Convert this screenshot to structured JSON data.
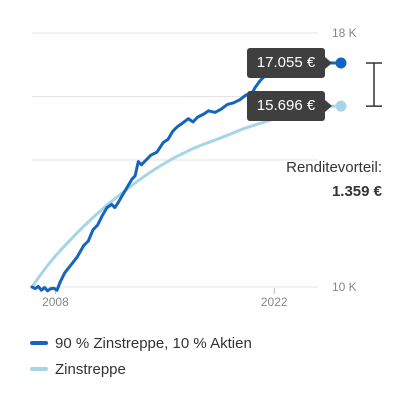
{
  "chart_data": {
    "type": "line",
    "title": "",
    "xlabel": "",
    "ylabel": "",
    "xlim": [
      2006.5,
      2024.8
    ],
    "ylim": [
      10000,
      18000
    ],
    "x_ticks": [
      2008,
      2022
    ],
    "x_tick_labels": [
      "2008",
      "2022"
    ],
    "y_ticks": [
      10000,
      18000
    ],
    "y_tick_labels": [
      "10 K",
      "18 K"
    ],
    "grid": "horizontal",
    "legend_position": "bottom",
    "series": [
      {
        "name": "90 % Zinstreppe, 10 % Aktien",
        "color": "#1565c0",
        "points": [
          [
            2006.5,
            10000
          ],
          [
            2006.7,
            9950
          ],
          [
            2006.9,
            10020
          ],
          [
            2007.1,
            9900
          ],
          [
            2007.3,
            9980
          ],
          [
            2007.5,
            9880
          ],
          [
            2007.7,
            9950
          ],
          [
            2007.9,
            9960
          ],
          [
            2008.1,
            9900
          ],
          [
            2008.3,
            10150
          ],
          [
            2008.6,
            10450
          ],
          [
            2009.0,
            10700
          ],
          [
            2009.4,
            10950
          ],
          [
            2009.8,
            11300
          ],
          [
            2010.1,
            11450
          ],
          [
            2010.4,
            11800
          ],
          [
            2010.7,
            11950
          ],
          [
            2011.0,
            12250
          ],
          [
            2011.3,
            12500
          ],
          [
            2011.6,
            12600
          ],
          [
            2011.8,
            12500
          ],
          [
            2012.0,
            12650
          ],
          [
            2012.3,
            12900
          ],
          [
            2012.6,
            13150
          ],
          [
            2012.9,
            13400
          ],
          [
            2013.1,
            13500
          ],
          [
            2013.3,
            13950
          ],
          [
            2013.5,
            13850
          ],
          [
            2013.8,
            14000
          ],
          [
            2014.1,
            14150
          ],
          [
            2014.5,
            14250
          ],
          [
            2014.9,
            14550
          ],
          [
            2015.2,
            14650
          ],
          [
            2015.5,
            14900
          ],
          [
            2015.8,
            15050
          ],
          [
            2016.1,
            15150
          ],
          [
            2016.5,
            15300
          ],
          [
            2016.8,
            15200
          ],
          [
            2017.1,
            15350
          ],
          [
            2017.5,
            15450
          ],
          [
            2017.8,
            15550
          ],
          [
            2018.2,
            15500
          ],
          [
            2018.6,
            15600
          ],
          [
            2019.0,
            15750
          ],
          [
            2019.4,
            15800
          ],
          [
            2019.8,
            15900
          ],
          [
            2020.2,
            16050
          ],
          [
            2020.5,
            16050
          ],
          [
            2020.8,
            16300
          ],
          [
            2021.1,
            16500
          ],
          [
            2021.4,
            16650
          ],
          [
            2021.8,
            16900
          ],
          [
            2022.1,
            16950
          ],
          [
            2022.4,
            17010
          ],
          [
            2022.7,
            16960
          ],
          [
            2023.0,
            17040
          ],
          [
            2023.3,
            17010
          ],
          [
            2023.6,
            17055
          ],
          [
            2024.1,
            17055
          ]
        ]
      },
      {
        "name": "Zinstreppe",
        "color": "#a8d5e5",
        "points": [
          [
            2006.5,
            10000
          ],
          [
            2007.0,
            10350
          ],
          [
            2007.5,
            10680
          ],
          [
            2008.0,
            10980
          ],
          [
            2008.5,
            11250
          ],
          [
            2009.0,
            11510
          ],
          [
            2009.5,
            11760
          ],
          [
            2010.0,
            12000
          ],
          [
            2010.5,
            12230
          ],
          [
            2011.0,
            12450
          ],
          [
            2011.5,
            12660
          ],
          [
            2012.0,
            12860
          ],
          [
            2012.5,
            13050
          ],
          [
            2013.0,
            13240
          ],
          [
            2013.5,
            13420
          ],
          [
            2014.0,
            13590
          ],
          [
            2014.5,
            13750
          ],
          [
            2015.0,
            13900
          ],
          [
            2015.5,
            14040
          ],
          [
            2016.0,
            14170
          ],
          [
            2016.5,
            14290
          ],
          [
            2017.0,
            14400
          ],
          [
            2017.5,
            14500
          ],
          [
            2018.0,
            14590
          ],
          [
            2018.5,
            14680
          ],
          [
            2019.0,
            14780
          ],
          [
            2019.5,
            14880
          ],
          [
            2020.0,
            14980
          ],
          [
            2020.5,
            15060
          ],
          [
            2021.0,
            15140
          ],
          [
            2021.5,
            15220
          ],
          [
            2022.0,
            15300
          ],
          [
            2022.5,
            15380
          ],
          [
            2023.0,
            15460
          ],
          [
            2023.5,
            15560
          ],
          [
            2024.1,
            15696
          ]
        ]
      }
    ],
    "annotations": {
      "end_label_top": "17.055 €",
      "end_label_bottom": "15.696 €",
      "advantage_label": "Renditevorteil:",
      "advantage_value": "1.359 €"
    }
  },
  "legend": {
    "items": [
      {
        "label": "90 % Zinstreppe, 10 % Aktien",
        "color": "#1565c0"
      },
      {
        "label": "Zinstreppe",
        "color": "#a8d5e5"
      }
    ]
  },
  "colors": {
    "callout_bg": "#3f3f3f",
    "grid": "#e3e3e3",
    "axis_text": "#888888",
    "bracket": "#333333"
  }
}
